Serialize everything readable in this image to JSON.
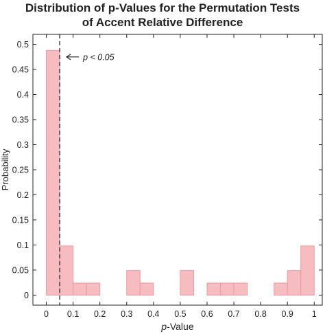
{
  "chart_data": {
    "type": "bar",
    "title_lines": [
      "Distribution of p-Values for the Permutation Tests",
      "of Accent Relative Difference"
    ],
    "xlabel_italic": "p",
    "xlabel_rest": "-Value",
    "ylabel": "Probability",
    "xlim": [
      -0.05,
      1.03
    ],
    "ylim": [
      -0.02,
      0.52
    ],
    "xticks": [
      0,
      0.1,
      0.2,
      0.3,
      0.4,
      0.5,
      0.6,
      0.7,
      0.8,
      0.9,
      1
    ],
    "xtick_labels": [
      "0",
      "0.1",
      "0.2",
      "0.3",
      "0.4",
      "0.5",
      "0.6",
      "0.7",
      "0.8",
      "0.9",
      "1"
    ],
    "yticks": [
      0,
      0.05,
      0.1,
      0.15,
      0.2,
      0.25,
      0.3,
      0.35,
      0.4,
      0.45,
      0.5
    ],
    "ytick_labels": [
      "0",
      "0.05",
      "0.1",
      "0.15",
      "0.2",
      "0.25",
      "0.3",
      "0.35",
      "0.4",
      "0.45",
      "0.5"
    ],
    "bin_edges": [
      0,
      0.05,
      0.1,
      0.15,
      0.2,
      0.25,
      0.3,
      0.35,
      0.4,
      0.45,
      0.5,
      0.55,
      0.6,
      0.65,
      0.7,
      0.75,
      0.8,
      0.85,
      0.9,
      0.95,
      1.0
    ],
    "values": [
      0.488,
      0.098,
      0.024,
      0.024,
      0,
      0,
      0.049,
      0.024,
      0,
      0,
      0.049,
      0,
      0.024,
      0.024,
      0.024,
      0,
      0,
      0.024,
      0.049,
      0.098
    ],
    "threshold": {
      "x": 0.05,
      "label": "p < 0.05"
    },
    "bar_color": "#f7bcc0",
    "bar_edge_color": "#eb9aa0",
    "grid": false
  }
}
